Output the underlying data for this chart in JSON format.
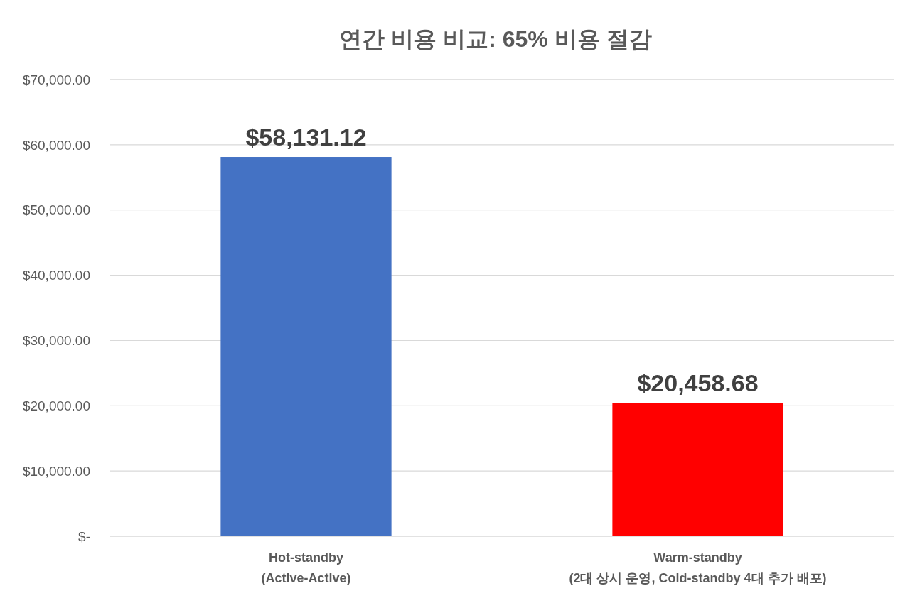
{
  "chart_data": {
    "type": "bar",
    "title": "연간 비용 비교: 65% 비용 절감",
    "categories": [
      "Hot-standby\n(Active-Active)",
      "Warm-standby\n(2대 상시 운영, Cold-standby 4대 추가 배포)"
    ],
    "values": [
      58131.12,
      20458.68
    ],
    "colors": [
      "#4472c4",
      "#ff0000"
    ],
    "value_labels": [
      "$58,131.12",
      "$20,458.68"
    ],
    "ylim": [
      0,
      70000
    ],
    "yticks": [
      {
        "value": 0,
        "label": "$-"
      },
      {
        "value": 10000,
        "label": "$10,000.00"
      },
      {
        "value": 20000,
        "label": "$20,000.00"
      },
      {
        "value": 30000,
        "label": "$30,000.00"
      },
      {
        "value": 40000,
        "label": "$40,000.00"
      },
      {
        "value": 50000,
        "label": "$50,000.00"
      },
      {
        "value": 60000,
        "label": "$60,000.00"
      },
      {
        "value": 70000,
        "label": "$70,000.00"
      }
    ],
    "grid": "y"
  }
}
